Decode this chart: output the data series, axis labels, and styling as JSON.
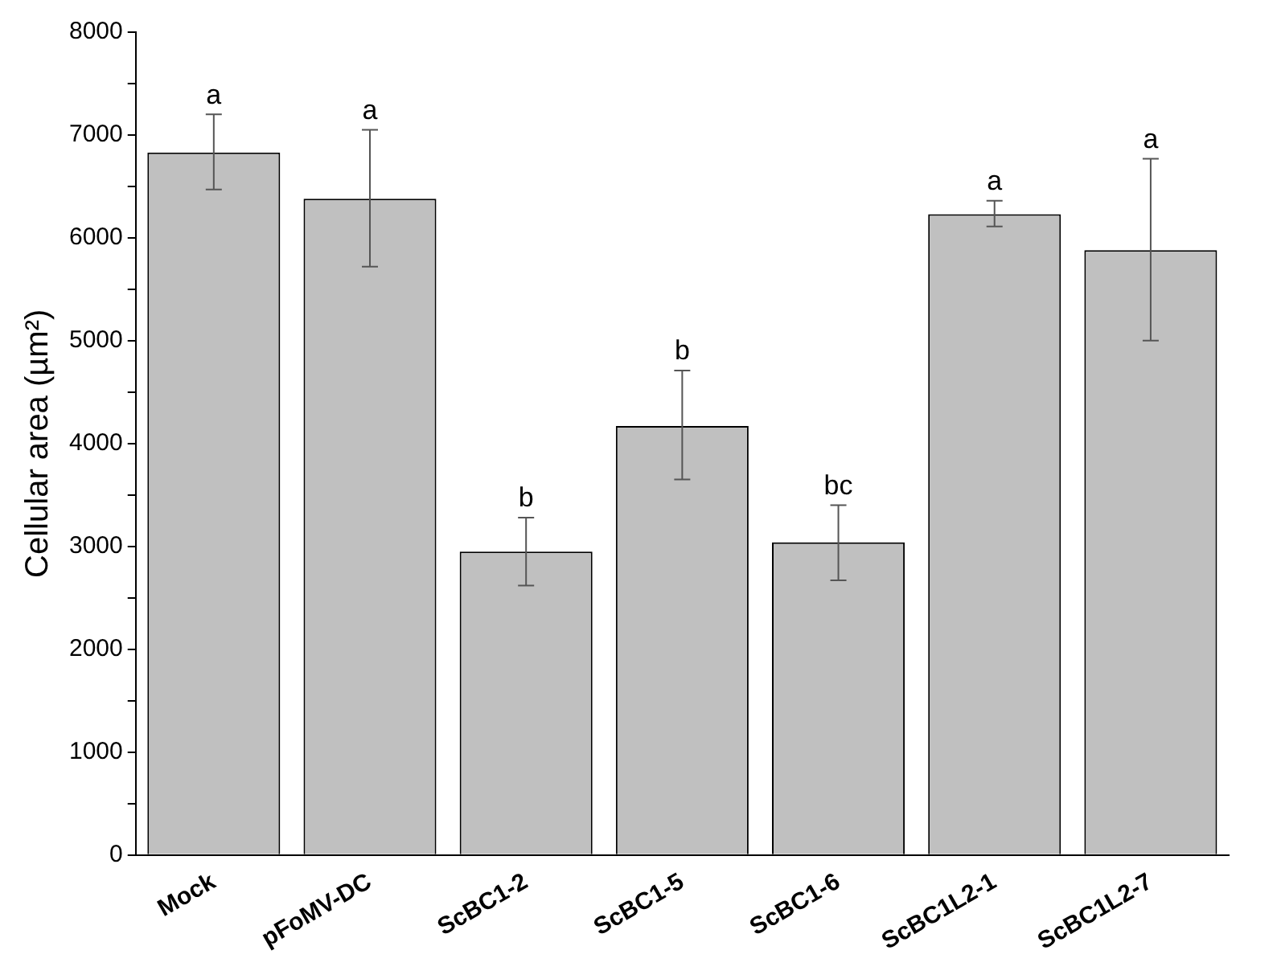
{
  "chart_data": {
    "type": "bar",
    "ylabel": "Cellular area (µm²)",
    "categories": [
      "Mock",
      "pFoMV-DC",
      "ScBC1-2",
      "ScBC1-5",
      "ScBC1-6",
      "ScBC1L2-1",
      "ScBC1L2-7"
    ],
    "values": [
      6830,
      6380,
      2950,
      4170,
      3040,
      6230,
      5880
    ],
    "errors": [
      [
        6470,
        7200
      ],
      [
        5720,
        7050
      ],
      [
        2620,
        3280
      ],
      [
        3650,
        4710
      ],
      [
        2670,
        3400
      ],
      [
        6110,
        6360
      ],
      [
        5000,
        6770
      ]
    ],
    "color": "#c0c0c0",
    "ylim": [
      0,
      8000
    ],
    "yticks": [
      0,
      {
        "value": 500,
        "label": null
      },
      1000,
      {
        "value": 1500,
        "label": null
      },
      2000,
      {
        "value": 2500,
        "label": null
      },
      3000,
      {
        "value": 3500,
        "label": null
      },
      4000,
      {
        "value": 4500,
        "label": null
      },
      5000,
      {
        "value": 5500,
        "label": null
      },
      6000,
      {
        "value": 6500,
        "label": null
      },
      7000,
      {
        "value": 7500,
        "label": null
      },
      8000
    ],
    "grid": false,
    "legend": false,
    "annotations": [
      {
        "text": "a",
        "x": "Mock",
        "y": 7200
      },
      {
        "text": "a",
        "x": "pFoMV-DC",
        "y": 7050
      },
      {
        "text": "b",
        "x": "ScBC1-2",
        "y": 3280
      },
      {
        "text": "b",
        "x": "ScBC1-5",
        "y": 4710
      },
      {
        "text": "bc",
        "x": "ScBC1-6",
        "y": 3400
      },
      {
        "text": "a",
        "x": "ScBC1L2-1",
        "y": 6360
      },
      {
        "text": "a",
        "x": "ScBC1L2-7",
        "y": 6770
      }
    ]
  }
}
